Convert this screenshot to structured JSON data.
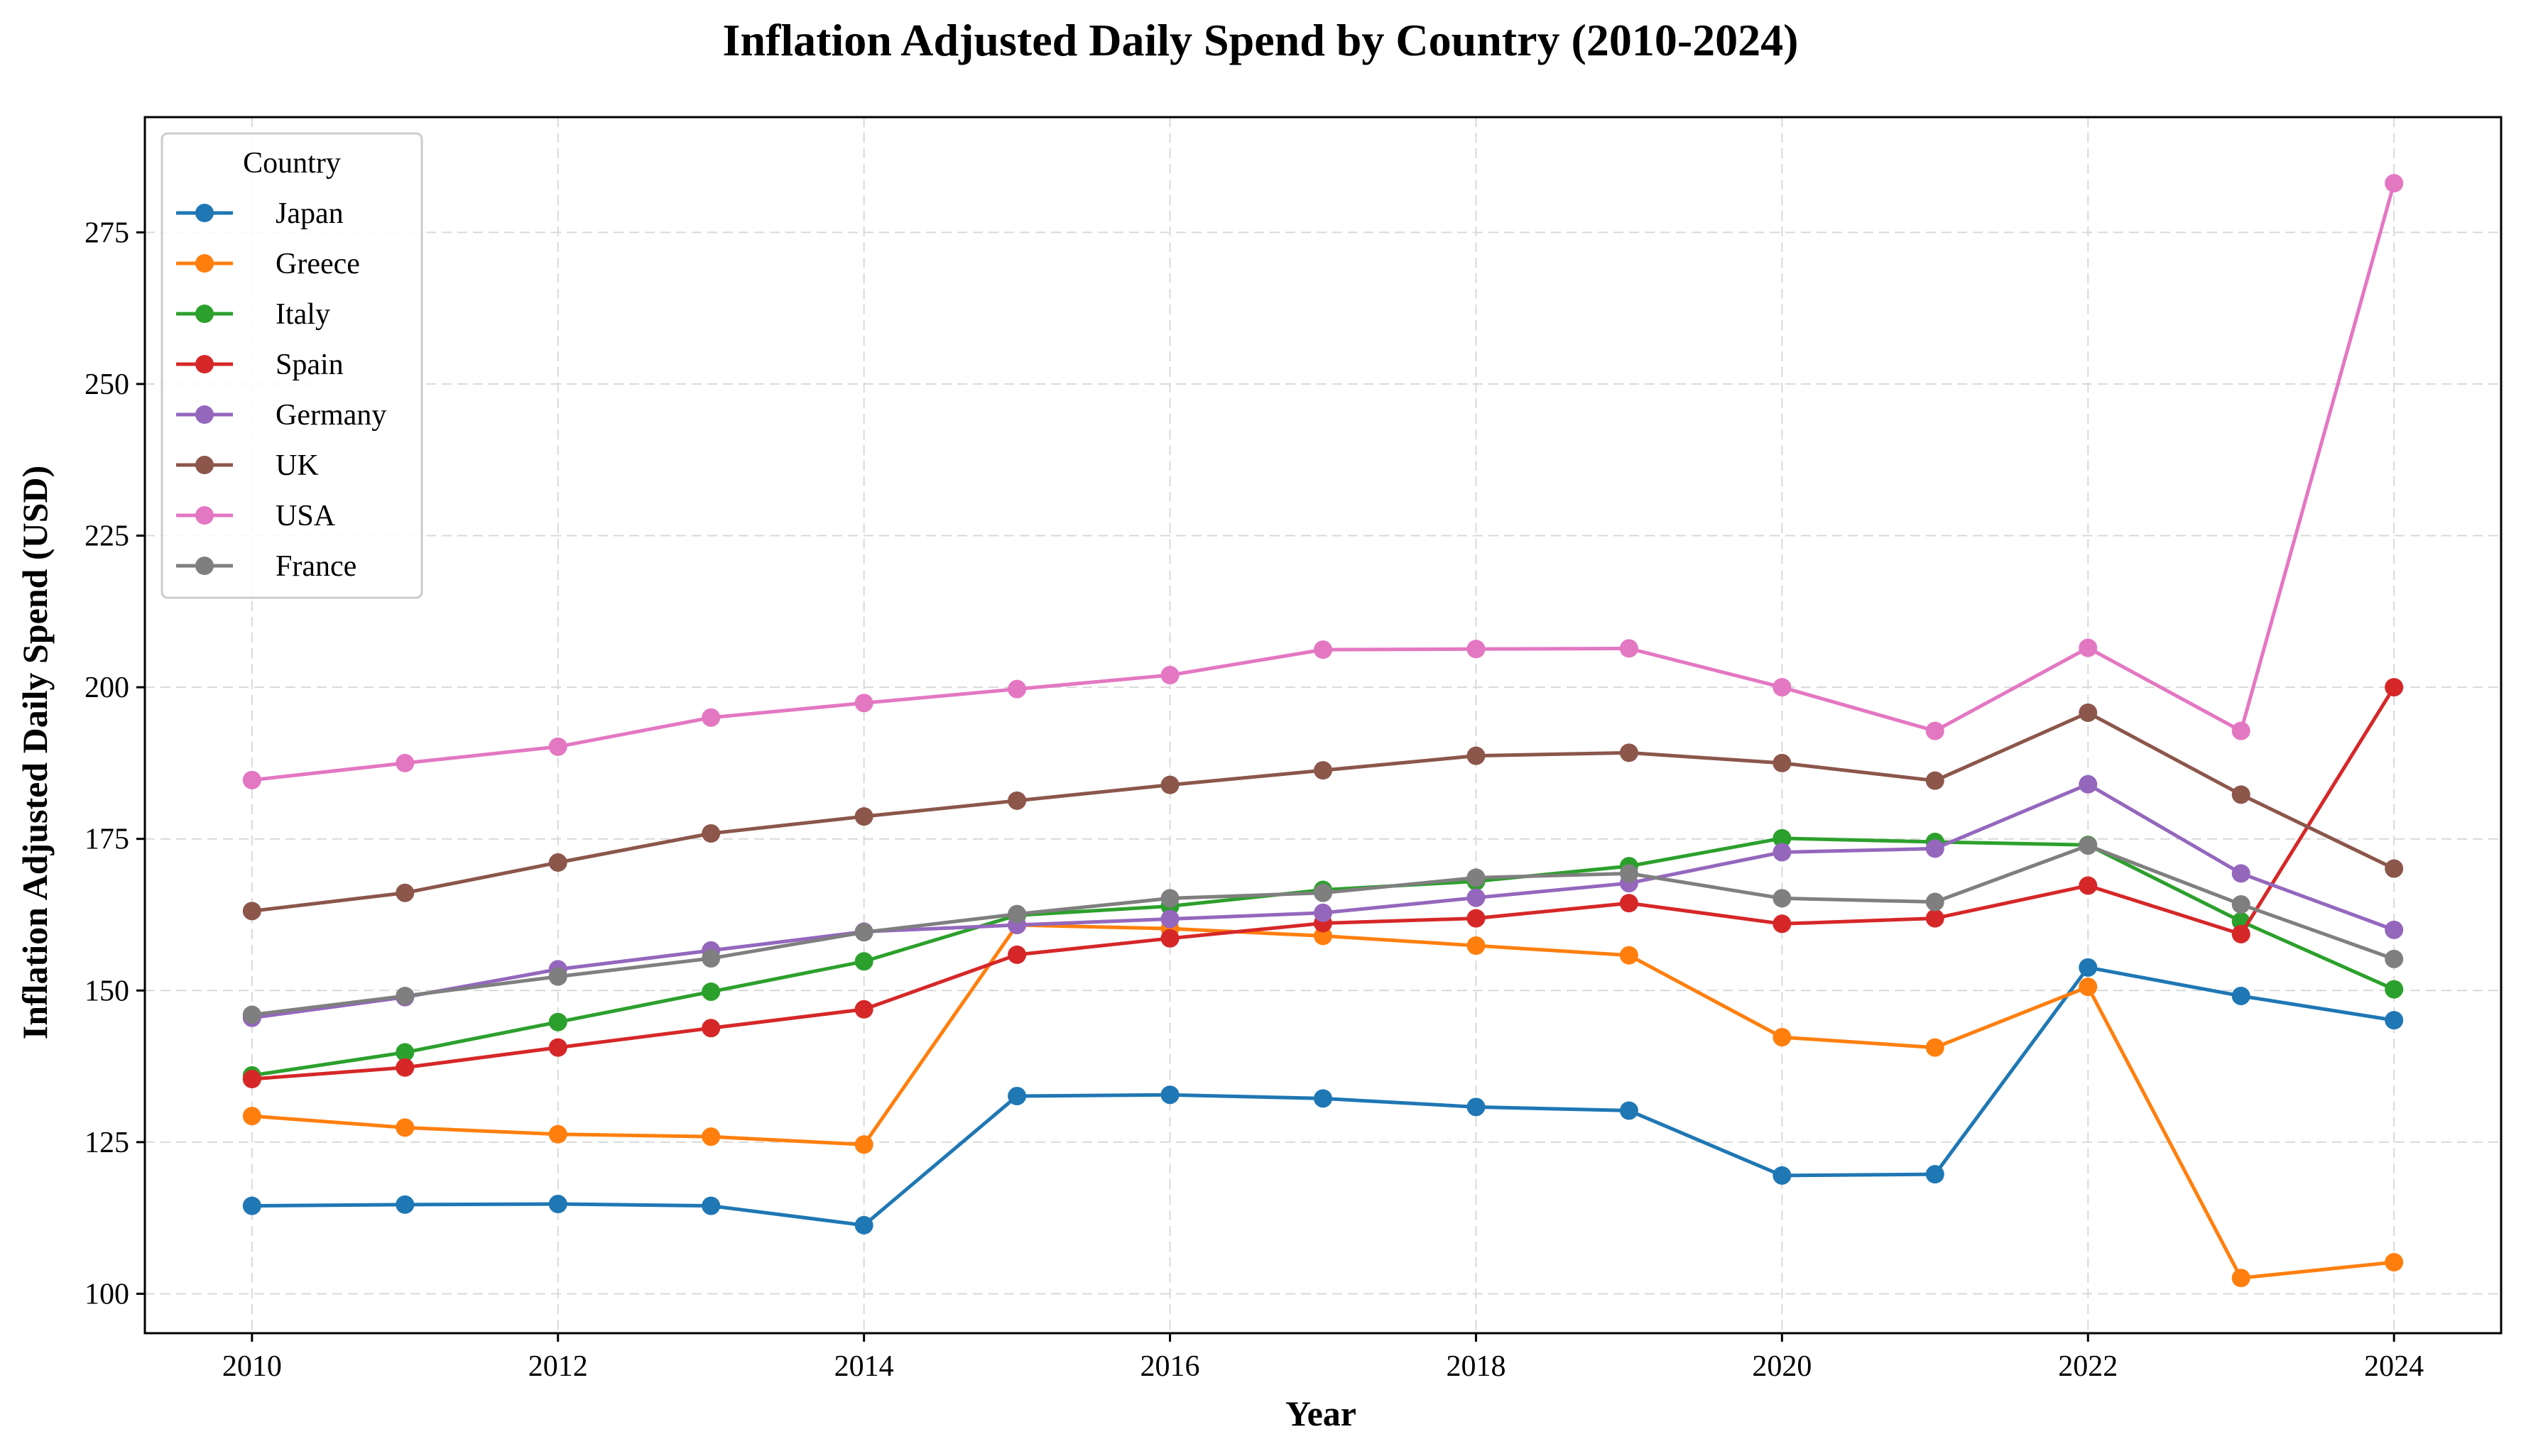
{
  "chart_data": {
    "type": "line",
    "title": "Inflation Adjusted Daily Spend by Country (2010-2024)",
    "xlabel": "Year",
    "ylabel": "Inflation Adjusted Daily Spend (USD)",
    "x": [
      2010,
      2011,
      2012,
      2013,
      2014,
      2015,
      2016,
      2017,
      2018,
      2019,
      2020,
      2021,
      2022,
      2023,
      2024
    ],
    "xlim": [
      2009.3,
      2024.7
    ],
    "ylim": [
      93.5,
      294
    ],
    "xticks": [
      2010,
      2012,
      2014,
      2016,
      2018,
      2020,
      2022,
      2024
    ],
    "yticks": [
      100,
      125,
      150,
      175,
      200,
      225,
      250,
      275
    ],
    "grid": true,
    "legend": {
      "title": "Country",
      "position": "top-left"
    },
    "series": [
      {
        "name": "Japan",
        "color": "#1f77b4",
        "values": [
          114.5,
          114.7,
          114.8,
          114.5,
          111.3,
          132.6,
          132.8,
          132.2,
          130.8,
          130.2,
          119.5,
          119.7,
          153.8,
          149.1,
          145.1
        ]
      },
      {
        "name": "Greece",
        "color": "#ff7f0e",
        "values": [
          129.3,
          127.4,
          126.3,
          125.9,
          124.6,
          160.8,
          160.2,
          159.0,
          157.4,
          155.8,
          142.3,
          140.6,
          150.6,
          102.6,
          105.2
        ]
      },
      {
        "name": "Italy",
        "color": "#2ca02c",
        "values": [
          136.0,
          139.8,
          144.8,
          149.8,
          154.8,
          162.4,
          163.9,
          166.6,
          168.0,
          170.5,
          175.1,
          174.5,
          174.0,
          161.4,
          150.2
        ]
      },
      {
        "name": "Spain",
        "color": "#d62728",
        "values": [
          135.4,
          137.3,
          140.6,
          143.8,
          146.9,
          155.9,
          158.6,
          161.1,
          161.9,
          164.4,
          161.0,
          161.9,
          167.3,
          159.3,
          200.0
        ]
      },
      {
        "name": "Germany",
        "color": "#9467bd",
        "values": [
          145.5,
          148.9,
          153.5,
          156.6,
          159.7,
          160.8,
          161.8,
          162.8,
          165.3,
          167.7,
          172.8,
          173.4,
          184.0,
          169.3,
          160.0
        ]
      },
      {
        "name": "UK",
        "color": "#8c564b",
        "values": [
          163.1,
          166.1,
          171.1,
          175.9,
          178.7,
          181.3,
          183.9,
          186.3,
          188.7,
          189.2,
          187.5,
          184.6,
          195.8,
          182.3,
          170.1
        ]
      },
      {
        "name": "USA",
        "color": "#e377c2",
        "values": [
          184.7,
          187.5,
          190.2,
          195.0,
          197.4,
          199.7,
          202.0,
          206.2,
          206.3,
          206.4,
          200.0,
          192.8,
          206.5,
          192.8,
          283.1
        ]
      },
      {
        "name": "France",
        "color": "#7f7f7f",
        "values": [
          146.0,
          149.1,
          152.3,
          155.3,
          159.6,
          162.6,
          165.2,
          166.1,
          168.6,
          169.3,
          165.2,
          164.6,
          173.9,
          164.2,
          155.2
        ]
      }
    ]
  }
}
